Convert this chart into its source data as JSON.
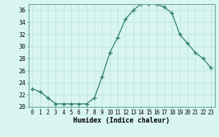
{
  "x": [
    0,
    1,
    2,
    3,
    4,
    5,
    6,
    7,
    8,
    9,
    10,
    11,
    12,
    13,
    14,
    15,
    16,
    17,
    18,
    19,
    20,
    21,
    22,
    23
  ],
  "y": [
    23.0,
    22.5,
    21.5,
    20.5,
    20.5,
    20.5,
    20.5,
    20.5,
    21.5,
    25.0,
    29.0,
    31.5,
    34.5,
    36.0,
    37.0,
    37.0,
    37.0,
    36.5,
    35.5,
    32.0,
    30.5,
    29.0,
    28.0,
    26.5
  ],
  "xlabel": "Humidex (Indice chaleur)",
  "ylim": [
    20,
    37
  ],
  "xlim": [
    -0.5,
    23.5
  ],
  "yticks": [
    20,
    22,
    24,
    26,
    28,
    30,
    32,
    34,
    36
  ],
  "xticks": [
    0,
    1,
    2,
    3,
    4,
    5,
    6,
    7,
    8,
    9,
    10,
    11,
    12,
    13,
    14,
    15,
    16,
    17,
    18,
    19,
    20,
    21,
    22,
    23
  ],
  "xtick_labels": [
    "0",
    "1",
    "2",
    "3",
    "4",
    "5",
    "6",
    "7",
    "8",
    "9",
    "10",
    "11",
    "12",
    "13",
    "14",
    "15",
    "16",
    "17",
    "18",
    "19",
    "20",
    "21",
    "22",
    "23"
  ],
  "line_color": "#2d7d6e",
  "marker": "+",
  "marker_size": 4,
  "bg_color": "#d8f5f0",
  "grid_color": "#b8ddd8",
  "axes_bg": "#d8f5f0",
  "fig_bg": "#d8f5f0",
  "tick_fontsize": 5.5,
  "xlabel_fontsize": 7,
  "ytick_fontsize": 6
}
